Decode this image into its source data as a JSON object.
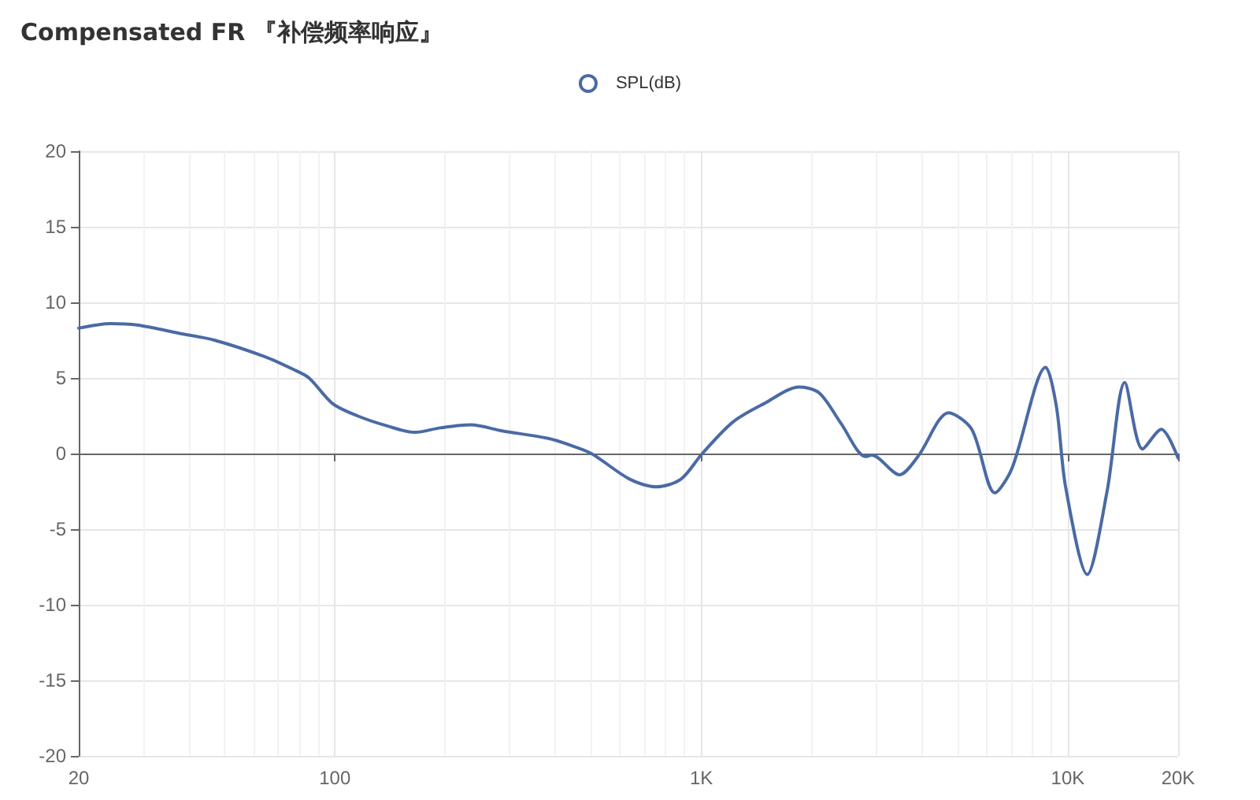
{
  "chart_data": {
    "type": "line",
    "title": "Compensated FR 『补偿频率响应』",
    "x": [
      20,
      24.5,
      28.9,
      38.6,
      46.9,
      64.5,
      78,
      85,
      98.6,
      115,
      140,
      165,
      194,
      235,
      286,
      382,
      433,
      501,
      638,
      754,
      879,
      1006,
      1222,
      1483,
      1851,
      2100,
      2404,
      2807,
      2917,
      3475,
      3900,
      4731,
      5470,
      6324,
      7035,
      8706,
      9311,
      9863,
      11300,
      12800,
      14300,
      16000,
      18000,
      20000
    ],
    "series": [
      {
        "name": "SPL(dB)",
        "color": "#4a6aa5",
        "values": [
          8.3,
          8.6,
          8.5,
          7.9,
          7.5,
          6.4,
          5.5,
          5.0,
          3.3,
          2.5,
          1.8,
          1.4,
          1.7,
          1.9,
          1.5,
          1.0,
          0.6,
          0,
          -1.7,
          -2.2,
          -1.7,
          0,
          2.1,
          3.3,
          4.4,
          4.0,
          2.0,
          -0.2,
          -0.1,
          -1.4,
          -0.2,
          2.7,
          1.6,
          -2.6,
          -1.0,
          5.7,
          3.1,
          -2.2,
          -8.0,
          -2.5,
          4.7,
          0.3,
          1.6,
          -0.3
        ]
      }
    ],
    "log": "x",
    "xlim": [
      20,
      20000
    ],
    "xticks": [
      {
        "value": 20,
        "label": "20"
      },
      100,
      {
        "value": 1000,
        "label": "1K"
      },
      {
        "value": 10000,
        "label": "10K"
      },
      {
        "value": 20000,
        "label": "20K"
      }
    ],
    "ylim": [
      -20,
      20
    ],
    "yticks": [
      -20,
      -15,
      -10,
      -5,
      0,
      5,
      10,
      15,
      20
    ],
    "grid": true,
    "legend": "top",
    "marker": "none",
    "line_style": "solid"
  }
}
